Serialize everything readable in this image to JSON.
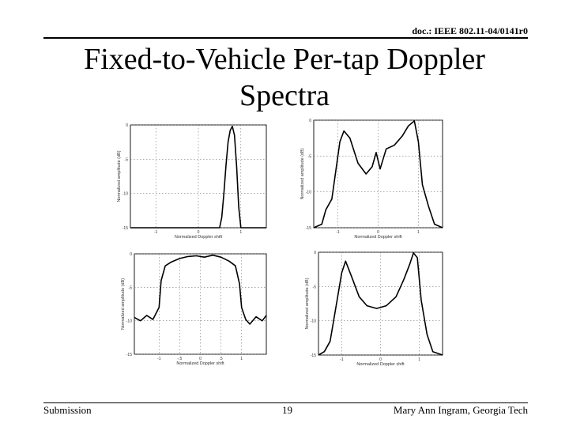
{
  "header": {
    "doc_id": "doc.: IEEE 802.11-04/0141r0"
  },
  "slide": {
    "title_line1": "Fixed-to-Vehicle Per-tap Doppler",
    "title_line2": "Spectra"
  },
  "footer": {
    "left": "Submission",
    "page": "19",
    "right": "Mary Ann Ingram, Georgia Tech"
  },
  "chart_data": [
    {
      "type": "line",
      "xlabel": "Normalized Doppler shift",
      "ylabel": "Normalized amplitude (dB)",
      "xlim": [
        -1.6,
        1.6
      ],
      "ylim": [
        -15,
        0
      ],
      "xticks": [
        "-1",
        "0",
        "1"
      ],
      "yticks": [
        "0",
        "-5",
        "-10",
        "-15"
      ],
      "grid": true,
      "series": [
        {
          "x": [
            -1.6,
            0.5,
            0.55,
            0.6,
            0.65,
            0.7,
            0.75,
            0.8,
            0.85,
            0.9,
            0.95,
            1.0,
            1.6
          ],
          "y": [
            -15,
            -15,
            -13.5,
            -10,
            -6,
            -2.5,
            -0.8,
            -0.2,
            -1.5,
            -6,
            -12,
            -15,
            -15
          ]
        }
      ]
    },
    {
      "type": "line",
      "xlabel": "Normalized Doppler shift",
      "ylabel": "Normalized amplitude (dB)",
      "xlim": [
        -1.6,
        1.6
      ],
      "ylim": [
        -15,
        0
      ],
      "xticks": [
        "-1",
        "0",
        "1"
      ],
      "yticks": [
        "0",
        "-5",
        "-10",
        "-15"
      ],
      "grid": true,
      "series": [
        {
          "x": [
            -1.6,
            -1.4,
            -1.3,
            -1.15,
            -1.05,
            -0.95,
            -0.85,
            -0.7,
            -0.5,
            -0.3,
            -0.15,
            -0.05,
            0.05,
            0.2,
            0.4,
            0.6,
            0.75,
            0.9,
            1.0,
            1.1,
            1.25,
            1.4,
            1.6
          ],
          "y": [
            -15,
            -14.5,
            -12.5,
            -11,
            -7,
            -3,
            -1.5,
            -2.5,
            -6,
            -7.5,
            -6.5,
            -4.5,
            -6.8,
            -4,
            -3.5,
            -2.2,
            -0.8,
            -0.1,
            -3,
            -9,
            -12,
            -14.5,
            -15
          ]
        }
      ]
    },
    {
      "type": "line",
      "xlabel": "Normalized Doppler shift",
      "ylabel": "Normalized amplitude (dB)",
      "xlim": [
        -1.6,
        1.6
      ],
      "ylim": [
        -15,
        0
      ],
      "xticks": [
        "-1",
        "-.5",
        "0",
        ".5",
        "1"
      ],
      "yticks": [
        "0",
        "-5",
        "-10",
        "-15"
      ],
      "grid": true,
      "series": [
        {
          "x": [
            -1.6,
            -1.45,
            -1.3,
            -1.15,
            -1.0,
            -0.95,
            -0.85,
            -0.7,
            -0.5,
            -0.3,
            -0.1,
            0.1,
            0.3,
            0.5,
            0.7,
            0.85,
            0.95,
            1.0,
            1.1,
            1.2,
            1.35,
            1.5,
            1.6
          ],
          "y": [
            -9.5,
            -10,
            -9.2,
            -9.8,
            -8,
            -4,
            -1.8,
            -1.2,
            -0.7,
            -0.4,
            -0.3,
            -0.5,
            -0.2,
            -0.5,
            -1.1,
            -1.8,
            -4.5,
            -8,
            -9.8,
            -10.5,
            -9.4,
            -10,
            -9.2
          ]
        }
      ]
    },
    {
      "type": "line",
      "xlabel": "Normalized Doppler shift",
      "ylabel": "Normalized amplitude (dB)",
      "xlim": [
        -1.6,
        1.6
      ],
      "ylim": [
        -15,
        0
      ],
      "xticks": [
        "-1",
        "0",
        "1"
      ],
      "yticks": [
        "0",
        "-5",
        "-10",
        "-15"
      ],
      "grid": true,
      "series": [
        {
          "x": [
            -1.6,
            -1.45,
            -1.3,
            -1.15,
            -1.0,
            -0.9,
            -0.75,
            -0.55,
            -0.35,
            -0.1,
            0.15,
            0.4,
            0.6,
            0.75,
            0.85,
            0.95,
            1.05,
            1.2,
            1.35,
            1.6
          ],
          "y": [
            -15,
            -14.5,
            -13,
            -8,
            -3,
            -1.3,
            -3.5,
            -6.5,
            -7.8,
            -8.2,
            -7.8,
            -6.5,
            -4,
            -1.8,
            -0.1,
            -0.8,
            -7,
            -12,
            -14.5,
            -15
          ]
        }
      ]
    }
  ]
}
